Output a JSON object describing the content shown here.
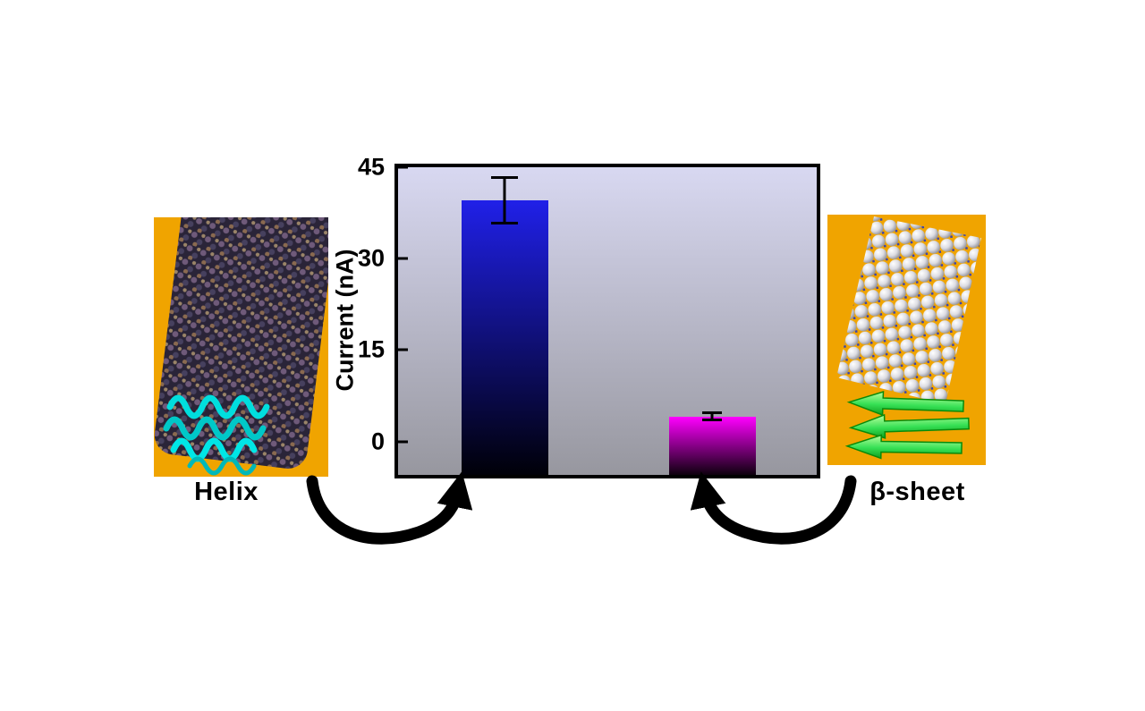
{
  "figure": {
    "left_label": "Helix",
    "right_label": "β-sheet"
  },
  "chart_data": {
    "type": "bar",
    "title": "",
    "xlabel": "",
    "ylabel": "Current (nA)",
    "categories": [
      "Helix",
      "β-sheet"
    ],
    "values": [
      39.6,
      4.1
    ],
    "errors": [
      4.0,
      0.8
    ],
    "yticks": [
      45,
      30,
      15,
      0
    ],
    "ylim": [
      -5.5,
      45
    ],
    "grid": false,
    "legend": false,
    "bar_colors_top": [
      "#2020e8",
      "#ff00ff"
    ],
    "bar_colors_bottom": [
      "#000008",
      "#0d000d"
    ],
    "plot_bg_top": "#d8d8f1",
    "plot_bg_bottom": "#97979f",
    "panel_color": "#f0a400",
    "arrow_color": "#000000",
    "helix_ribbon_color": "#00dede",
    "beta_arrow_color": "#36e055"
  }
}
